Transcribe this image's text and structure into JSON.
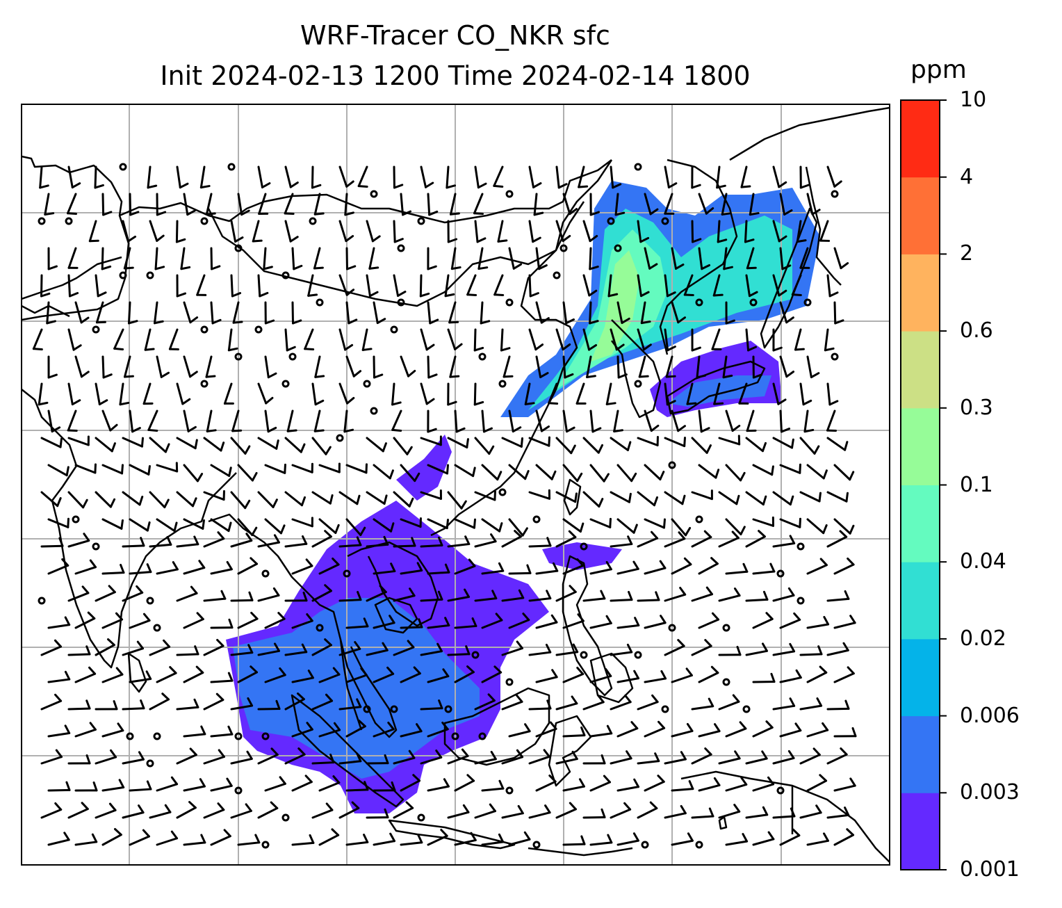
{
  "title": {
    "line1": "WRF-Tracer CO_NKR sfc",
    "line2": "Init 2024-02-13 1200 Time 2024-02-14 1800"
  },
  "colorbar": {
    "unit": "ppm",
    "levels": [
      "0.001",
      "0.003",
      "0.006",
      "0.02",
      "0.04",
      "0.1",
      "0.3",
      "0.6",
      "2",
      "4",
      "10"
    ],
    "colors": [
      "#6429ff",
      "#3475f4",
      "#04b3e9",
      "#31dfd3",
      "#64fbbf",
      "#96fc98",
      "#cce085",
      "#ffb35e",
      "#ff7036",
      "#ff2b14"
    ]
  },
  "map": {
    "coastline_color": "#000000",
    "grid_color": "#b0b0b0",
    "wind_barb_color": "#000000"
  }
}
